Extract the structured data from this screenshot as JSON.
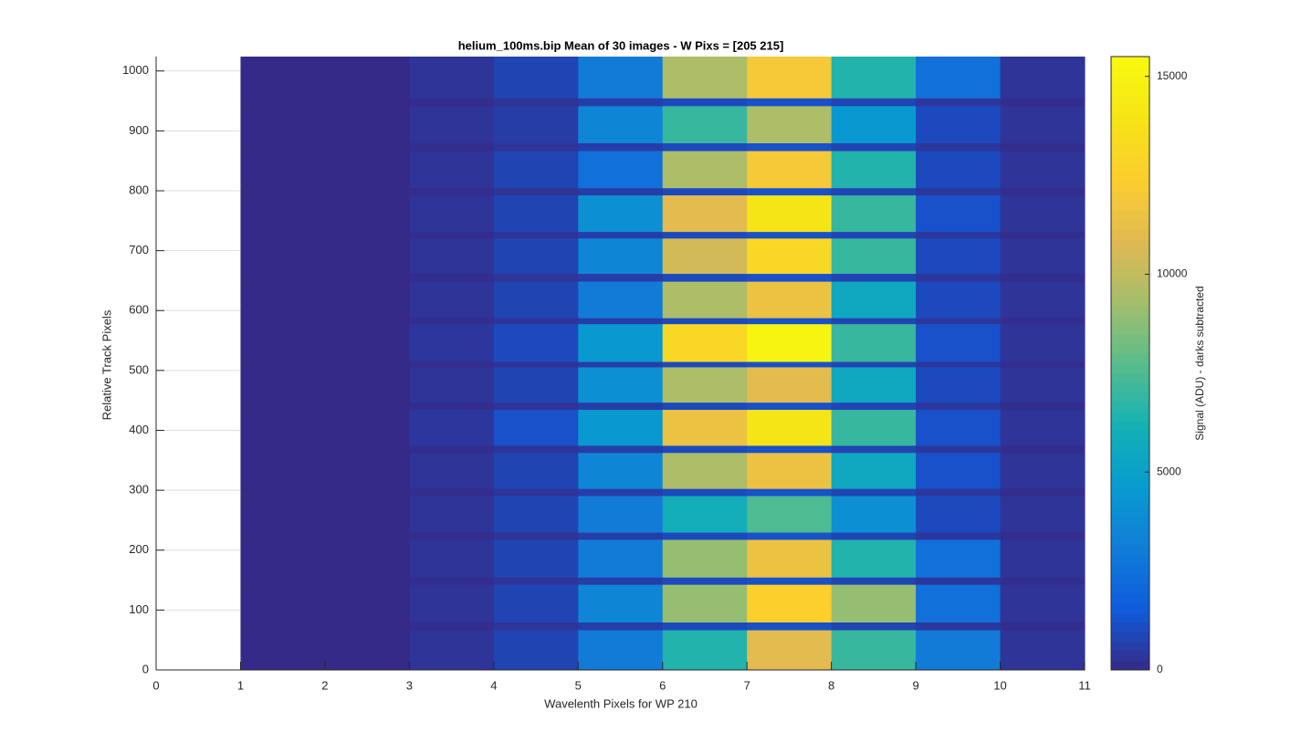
{
  "chart_data": {
    "type": "heatmap",
    "title": "helium_100ms.bip  Mean of 30 images - W Pixs = [205  215]",
    "x_label": "Wavelenth Pixels for WP 210",
    "y_label": "Relative Track Pixels",
    "colorbar_label": "Signal (ADU) - darks subtracted",
    "colormap": "parula",
    "grid": true,
    "xlim": [
      0,
      11
    ],
    "ylim": [
      0,
      1024
    ],
    "xticks": [
      0,
      1,
      2,
      3,
      4,
      5,
      6,
      7,
      8,
      9,
      10,
      11
    ],
    "yticks": [
      0,
      100,
      200,
      300,
      400,
      500,
      600,
      700,
      800,
      900,
      1000
    ],
    "clim": [
      0,
      15500
    ],
    "cticks": [
      0,
      5000,
      10000,
      15000
    ],
    "x_edges": [
      1,
      2,
      3,
      4,
      5,
      6,
      7,
      8,
      9,
      10,
      11
    ],
    "y_edges": [
      0,
      67,
      80,
      143,
      155,
      218,
      230,
      291,
      303,
      363,
      375,
      435,
      447,
      506,
      515,
      578,
      588,
      649,
      662,
      721,
      732,
      793,
      805,
      867,
      880,
      942,
      955,
      1024
    ],
    "z": [
      [
        0,
        0,
        300,
        800,
        3000,
        6500,
        11000,
        7000,
        3000,
        300
      ],
      [
        0,
        0,
        100,
        300,
        600,
        1000,
        1200,
        800,
        400,
        100
      ],
      [
        0,
        0,
        300,
        800,
        3500,
        9000,
        12500,
        9000,
        2500,
        300
      ],
      [
        0,
        0,
        100,
        300,
        600,
        1000,
        1200,
        800,
        400,
        100
      ],
      [
        0,
        0,
        300,
        800,
        3000,
        9000,
        11500,
        6500,
        2500,
        300
      ],
      [
        0,
        0,
        100,
        300,
        600,
        1000,
        1200,
        800,
        400,
        100
      ],
      [
        0,
        0,
        300,
        800,
        3000,
        6000,
        7500,
        4000,
        1000,
        300
      ],
      [
        0,
        0,
        100,
        300,
        600,
        1000,
        1200,
        800,
        400,
        100
      ],
      [
        0,
        0,
        300,
        800,
        3500,
        9500,
        11500,
        5500,
        1200,
        300
      ],
      [
        0,
        0,
        100,
        300,
        600,
        1000,
        1200,
        800,
        400,
        100
      ],
      [
        0,
        0,
        400,
        1200,
        4500,
        11500,
        14000,
        7000,
        1200,
        300
      ],
      [
        0,
        0,
        100,
        300,
        600,
        1000,
        1200,
        800,
        400,
        100
      ],
      [
        0,
        0,
        300,
        800,
        4000,
        9500,
        11000,
        5500,
        1000,
        300
      ],
      [
        0,
        0,
        100,
        300,
        600,
        1000,
        1200,
        800,
        400,
        100
      ],
      [
        0,
        0,
        400,
        1000,
        4500,
        13000,
        15000,
        7000,
        1200,
        300
      ],
      [
        0,
        0,
        100,
        300,
        600,
        1000,
        1200,
        800,
        400,
        100
      ],
      [
        0,
        0,
        300,
        800,
        3000,
        9500,
        11500,
        5500,
        1000,
        300
      ],
      [
        0,
        0,
        100,
        300,
        600,
        1000,
        1200,
        800,
        400,
        100
      ],
      [
        0,
        0,
        300,
        800,
        3500,
        10500,
        13000,
        7000,
        1000,
        300
      ],
      [
        0,
        0,
        100,
        300,
        600,
        1000,
        1200,
        800,
        400,
        100
      ],
      [
        0,
        0,
        300,
        800,
        4000,
        11000,
        14000,
        7000,
        1200,
        300
      ],
      [
        0,
        0,
        100,
        300,
        600,
        1000,
        1200,
        800,
        400,
        100
      ],
      [
        0,
        0,
        300,
        800,
        2500,
        9500,
        12000,
        6500,
        1000,
        300
      ],
      [
        0,
        0,
        100,
        300,
        600,
        1000,
        1200,
        800,
        400,
        100
      ],
      [
        0,
        0,
        300,
        600,
        3500,
        7000,
        9500,
        4500,
        1000,
        300
      ],
      [
        0,
        0,
        100,
        300,
        600,
        1000,
        1200,
        800,
        400,
        100
      ],
      [
        0,
        0,
        300,
        800,
        3000,
        9500,
        12000,
        6500,
        2500,
        300
      ]
    ]
  }
}
